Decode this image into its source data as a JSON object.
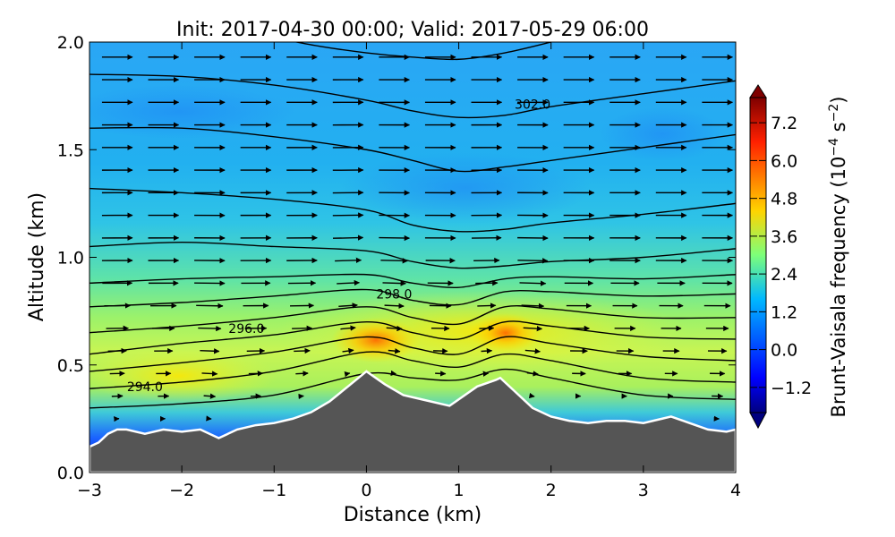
{
  "chart_data": {
    "type": "heatmap",
    "title": "Init: 2017-04-30 00:00; Valid: 2017-05-29 06:00",
    "xlabel": "Distance (km)",
    "ylabel": "Altitude (km)",
    "xlim": [
      -3,
      4
    ],
    "ylim": [
      0,
      2
    ],
    "x_ticks": [
      "−3",
      "−2",
      "−1",
      "0",
      "1",
      "2",
      "3",
      "4"
    ],
    "x_tick_values": [
      -3,
      -2,
      -1,
      0,
      1,
      2,
      3,
      4
    ],
    "y_ticks": [
      "0.0",
      "0.5",
      "1.0",
      "1.5",
      "2.0"
    ],
    "y_tick_values": [
      0,
      0.5,
      1.0,
      1.5,
      2.0
    ],
    "colorbar": {
      "label": "Brunt-Vaisala frequency (10⁻⁴ s⁻²)",
      "label_text": "Brunt-Vaisala frequency (10",
      "label_exp1": "−4",
      "label_mid": " s",
      "label_exp2": "−2",
      "label_end": ")",
      "ticks": [
        "−1.2",
        "0.0",
        "1.2",
        "2.4",
        "3.6",
        "4.8",
        "6.0",
        "7.2"
      ],
      "tick_values": [
        -1.2,
        0.0,
        1.2,
        2.4,
        3.6,
        4.8,
        6.0,
        7.2
      ],
      "range": [
        -2.0,
        8.0
      ],
      "colormap": "jet",
      "extend": "both"
    },
    "terrain": {
      "x": [
        -3.0,
        -2.9,
        -2.8,
        -2.7,
        -2.6,
        -2.4,
        -2.2,
        -2.0,
        -1.8,
        -1.6,
        -1.4,
        -1.2,
        -1.0,
        -0.8,
        -0.6,
        -0.4,
        -0.2,
        0.0,
        0.2,
        0.4,
        0.6,
        0.8,
        0.9,
        1.0,
        1.2,
        1.4,
        1.45,
        1.6,
        1.8,
        2.0,
        2.2,
        2.4,
        2.6,
        2.8,
        3.0,
        3.2,
        3.3,
        3.5,
        3.7,
        3.9,
        4.0
      ],
      "y": [
        0.12,
        0.14,
        0.18,
        0.2,
        0.2,
        0.18,
        0.2,
        0.19,
        0.2,
        0.16,
        0.2,
        0.22,
        0.23,
        0.25,
        0.28,
        0.33,
        0.4,
        0.47,
        0.41,
        0.36,
        0.34,
        0.32,
        0.31,
        0.34,
        0.4,
        0.43,
        0.44,
        0.38,
        0.3,
        0.26,
        0.24,
        0.23,
        0.24,
        0.24,
        0.23,
        0.25,
        0.26,
        0.23,
        0.2,
        0.19,
        0.2
      ],
      "color": "#555555"
    },
    "theta_contours": [
      {
        "level": "",
        "x": [
          -3,
          -2,
          -1,
          0,
          0.5,
          1,
          1.5,
          2,
          3,
          4
        ],
        "y": [
          0.3,
          0.32,
          0.36,
          0.46,
          0.44,
          0.43,
          0.48,
          0.44,
          0.36,
          0.34
        ]
      },
      {
        "level": "294.0",
        "x": [
          -3,
          -2,
          -1,
          0,
          0.5,
          1,
          1.5,
          2,
          3,
          4
        ],
        "y": [
          0.39,
          0.42,
          0.47,
          0.56,
          0.52,
          0.49,
          0.55,
          0.52,
          0.44,
          0.42
        ]
      },
      {
        "level": "",
        "x": [
          -3,
          -2,
          -1,
          0,
          0.5,
          1,
          1.5,
          2,
          3,
          4
        ],
        "y": [
          0.47,
          0.51,
          0.56,
          0.63,
          0.58,
          0.55,
          0.63,
          0.6,
          0.54,
          0.52
        ]
      },
      {
        "level": "296.0",
        "x": [
          -3,
          -2,
          -1,
          0,
          0.5,
          1,
          1.5,
          2,
          3,
          4
        ],
        "y": [
          0.55,
          0.6,
          0.64,
          0.7,
          0.65,
          0.62,
          0.7,
          0.68,
          0.63,
          0.62
        ]
      },
      {
        "level": "",
        "x": [
          -3,
          -2,
          -1,
          0,
          0.5,
          1,
          1.5,
          2,
          3,
          4
        ],
        "y": [
          0.65,
          0.68,
          0.72,
          0.77,
          0.72,
          0.69,
          0.77,
          0.76,
          0.72,
          0.72
        ]
      },
      {
        "level": "298.0",
        "x": [
          -3,
          -2,
          -1,
          0,
          0.5,
          1,
          1.5,
          2,
          3,
          4
        ],
        "y": [
          0.77,
          0.79,
          0.82,
          0.85,
          0.8,
          0.78,
          0.84,
          0.84,
          0.82,
          0.83
        ]
      },
      {
        "level": "",
        "x": [
          -3,
          -2,
          -1,
          0,
          0.5,
          1,
          1.5,
          2,
          3,
          4
        ],
        "y": [
          0.88,
          0.9,
          0.91,
          0.92,
          0.88,
          0.86,
          0.9,
          0.91,
          0.9,
          0.92
        ]
      },
      {
        "level": "",
        "x": [
          -3,
          -2,
          -1,
          0,
          0.5,
          1,
          1.5,
          2,
          3,
          4
        ],
        "y": [
          1.05,
          1.07,
          1.05,
          1.03,
          0.98,
          0.95,
          0.96,
          0.98,
          1.0,
          1.04
        ]
      },
      {
        "level": "",
        "x": [
          -3,
          -2,
          -1,
          0,
          0.5,
          1,
          1.5,
          2,
          3,
          4
        ],
        "y": [
          1.32,
          1.3,
          1.27,
          1.22,
          1.15,
          1.12,
          1.13,
          1.16,
          1.2,
          1.25
        ]
      },
      {
        "level": "",
        "x": [
          -3,
          -2,
          -1,
          0,
          0.5,
          1,
          1.5,
          2,
          3,
          4
        ],
        "y": [
          1.6,
          1.6,
          1.56,
          1.5,
          1.45,
          1.4,
          1.42,
          1.45,
          1.51,
          1.57
        ]
      },
      {
        "level": "302.0",
        "x": [
          -3,
          -2,
          -1,
          0,
          0.5,
          1,
          1.5,
          2,
          3,
          4
        ],
        "y": [
          1.85,
          1.84,
          1.8,
          1.73,
          1.68,
          1.65,
          1.66,
          1.7,
          1.76,
          1.82
        ]
      },
      {
        "level": "",
        "x": [
          -1,
          -0.5,
          0,
          0.5,
          1,
          1.5,
          2
        ],
        "y": [
          2.02,
          1.98,
          1.95,
          1.93,
          1.92,
          1.95,
          2.0
        ]
      }
    ],
    "contour_label_positions": [
      {
        "text": "294.0",
        "x": -2.4,
        "y": 0.4
      },
      {
        "text": "296.0",
        "x": -1.3,
        "y": 0.67
      },
      {
        "text": "298.0",
        "x": 0.3,
        "y": 0.83
      },
      {
        "text": "302.0",
        "x": 1.8,
        "y": 1.71
      }
    ],
    "wind_vectors": "flow predominantly eastward (left to right), following terrain; weak/near-calm vectors near the surface"
  }
}
